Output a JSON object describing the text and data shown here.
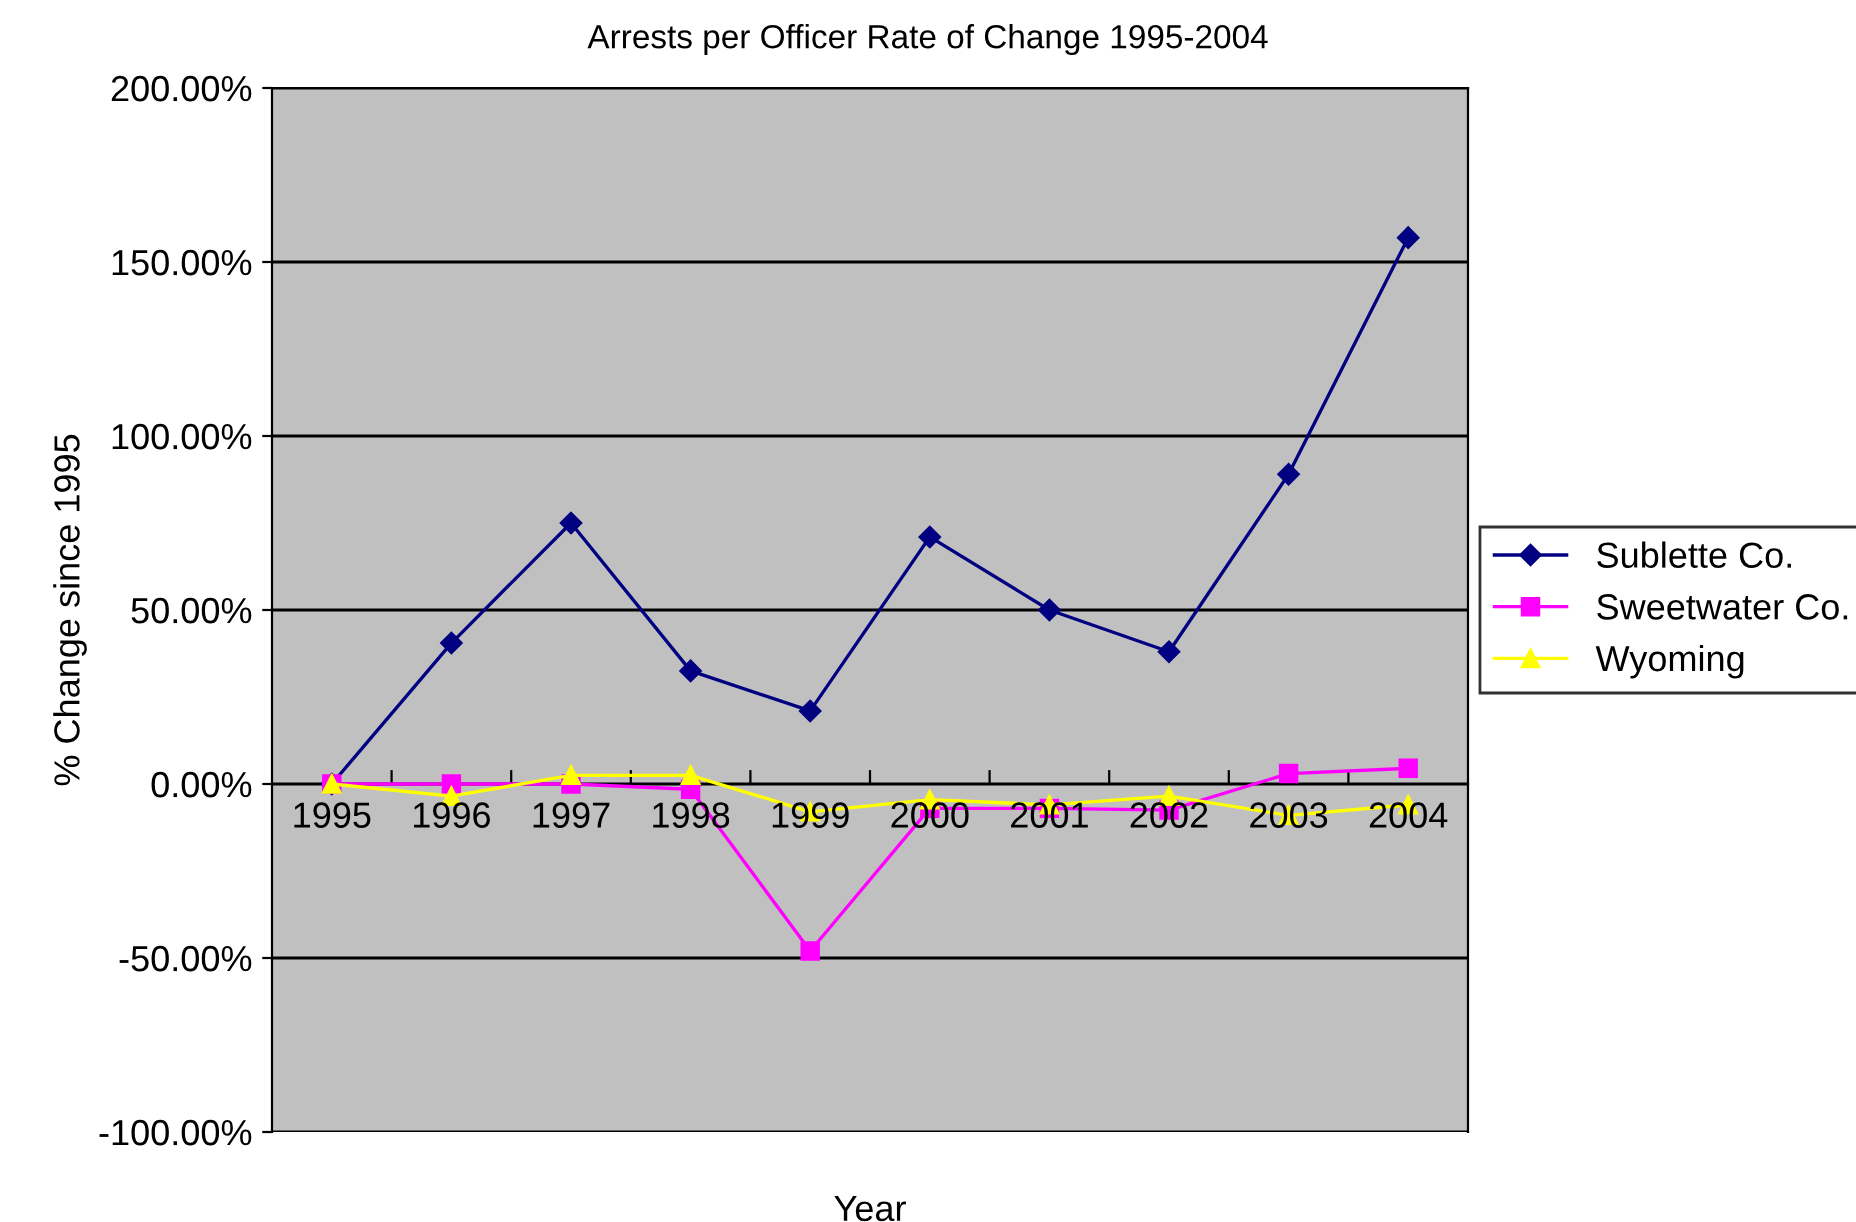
{
  "chart_data": {
    "type": "line",
    "title": "Arrests per Officer Rate of Change 1995-2004",
    "xlabel": "Year",
    "ylabel": "% Change since 1995",
    "categories": [
      "1995",
      "1996",
      "1997",
      "1998",
      "1999",
      "2000",
      "2001",
      "2002",
      "2003",
      "2004"
    ],
    "series": [
      {
        "name": "Sublette Co.",
        "color": "#000080",
        "marker": "diamond",
        "values": [
          0,
          40.5,
          75,
          32.5,
          21,
          71,
          50,
          38,
          89,
          157
        ]
      },
      {
        "name": "Sweetwater Co.",
        "color": "#ff00ff",
        "marker": "square",
        "values": [
          0,
          0,
          0,
          -1.5,
          -48,
          -7,
          -7,
          -7.5,
          3,
          4.5
        ]
      },
      {
        "name": "Wyoming",
        "color": "#ffff00",
        "marker": "triangle",
        "values": [
          0,
          -3.5,
          2.5,
          2.5,
          -8,
          -4.5,
          -6,
          -3.5,
          -9,
          -6
        ]
      }
    ],
    "ylim": [
      -100,
      200
    ],
    "yticks": [
      {
        "value": -100,
        "label": "-100.00%"
      },
      {
        "value": -50,
        "label": "-50.00%"
      },
      {
        "value": 0,
        "label": "0.00%"
      },
      {
        "value": 50,
        "label": "50.00%"
      },
      {
        "value": 100,
        "label": "100.00%"
      },
      {
        "value": 150,
        "label": "150.00%"
      },
      {
        "value": 200,
        "label": "200.00%"
      }
    ],
    "grid": "y",
    "legend": "right",
    "line_style": "solid"
  }
}
